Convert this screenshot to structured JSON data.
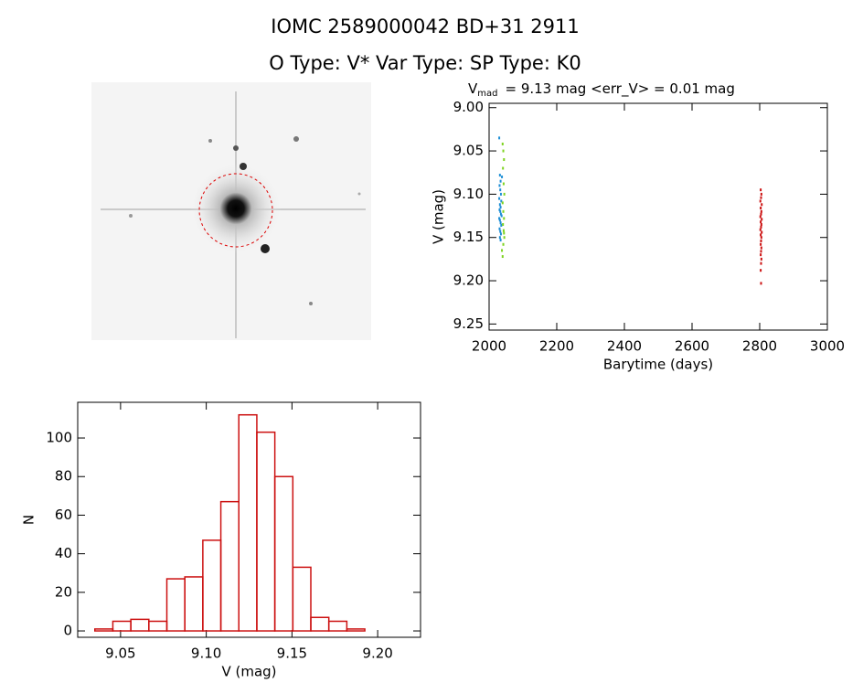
{
  "header": {
    "title": "IOMC 2589000042   BD+31  2911",
    "subtitle": "O Type: V*  Var Type:   SP Type: K0"
  },
  "chart_data": [
    {
      "type": "scatter",
      "title": {
        "symbol": "V",
        "subscript": "mad",
        "text": "= 9.13 mag <err_V> = 0.01 mag"
      },
      "x_label": "Barytime (days)",
      "y_label": "V (mag)",
      "xlim": [
        2000,
        3000
      ],
      "xticks": [
        2000,
        2200,
        2400,
        2600,
        2800,
        3000
      ],
      "ylim": [
        9.257,
        8.995
      ],
      "yticks": [
        {
          "value": 9,
          "label": "9.00"
        },
        9.05,
        {
          "value": 9.1,
          "label": "9.10"
        },
        9.15,
        {
          "value": 9.2,
          "label": "9.20"
        },
        9.25
      ],
      "series": [
        {
          "color": "#1f8fd6",
          "x": [
            2030,
            2032,
            2034,
            2031,
            2033,
            2035,
            2030,
            2036,
            2032,
            2034,
            2031,
            2033,
            2035,
            2037,
            2030,
            2032,
            2034,
            2036,
            2031,
            2033,
            2035,
            2032,
            2034,
            2038
          ],
          "values": [
            9.035,
            9.078,
            9.085,
            9.09,
            9.095,
            9.1,
            9.105,
            9.108,
            9.112,
            9.115,
            9.118,
            9.12,
            9.123,
            9.125,
            9.128,
            9.13,
            9.133,
            9.136,
            9.14,
            9.143,
            9.146,
            9.15,
            9.153,
            9.08
          ]
        },
        {
          "color": "#7ed321",
          "x": [
            2040,
            2042,
            2044,
            2041,
            2043,
            2045,
            2040,
            2042,
            2044,
            2041,
            2043,
            2045,
            2042,
            2038,
            2040,
            2044
          ],
          "values": [
            9.042,
            9.05,
            9.06,
            9.07,
            9.088,
            9.1,
            9.11,
            9.12,
            9.128,
            9.135,
            9.142,
            9.15,
            9.158,
            9.165,
            9.172,
            9.145
          ]
        },
        {
          "color": "#cc1111",
          "x": [
            2803,
            2805,
            2804,
            2802,
            2806,
            2803,
            2805,
            2804,
            2802,
            2806,
            2803,
            2805,
            2804,
            2802,
            2806,
            2803,
            2805,
            2804,
            2803,
            2805,
            2804,
            2803,
            2805,
            2804,
            2803,
            2804
          ],
          "values": [
            9.095,
            9.1,
            9.104,
            9.108,
            9.112,
            9.116,
            9.12,
            9.123,
            9.126,
            9.129,
            9.132,
            9.135,
            9.138,
            9.141,
            9.144,
            9.147,
            9.15,
            9.154,
            9.158,
            9.162,
            9.166,
            9.17,
            9.175,
            9.18,
            9.188,
            9.203
          ]
        }
      ]
    },
    {
      "type": "histogram",
      "color": "#cc1111",
      "x_label": "V (mag)",
      "y_label": "N",
      "bins": [
        9.035,
        9.0455,
        9.056,
        9.0665,
        9.077,
        9.0875,
        9.098,
        9.1085,
        9.119,
        9.1295,
        9.14,
        9.1505,
        9.161,
        9.1715,
        9.182,
        9.1925,
        9.203
      ],
      "values": [
        1,
        5,
        6,
        5,
        27,
        28,
        47,
        67,
        112,
        103,
        80,
        33,
        7,
        5,
        1,
        0
      ],
      "xlim": [
        9.025,
        9.225
      ],
      "xticks": [
        9.05,
        {
          "value": 9.1,
          "label": "9.10"
        },
        9.15,
        {
          "value": 9.2,
          "label": "9.20"
        }
      ],
      "ylim": [
        -3.3,
        118.5
      ],
      "yticks": [
        0,
        20,
        40,
        60,
        80,
        100
      ]
    }
  ]
}
